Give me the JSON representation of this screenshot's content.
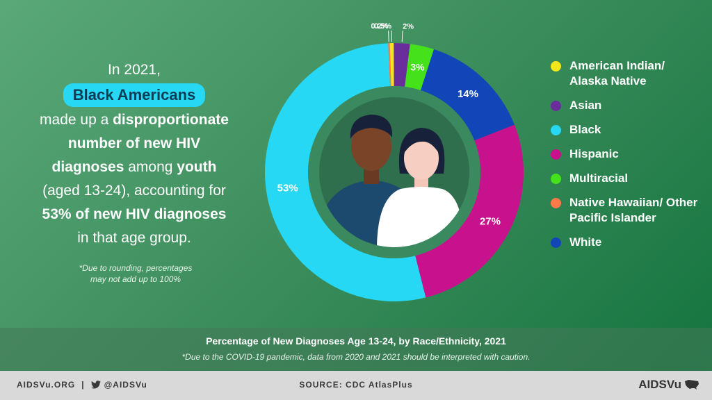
{
  "narrative": {
    "line1": "In 2021,",
    "highlight": "Black Americans",
    "line3_a": "made up a ",
    "line3_b": "disproportionate",
    "line4": "number of new HIV",
    "line5_a": "diagnoses",
    "line5_b": " among ",
    "line5_c": "youth",
    "line6": "(aged 13-24), accounting for",
    "line7": "53% of new HIV diagnoses",
    "line8": "in that age group."
  },
  "footnote": {
    "line1": "*Due to rounding, percentages",
    "line2": "may not add up to 100%"
  },
  "chart_data": {
    "type": "pie",
    "donut": true,
    "title": "Percentage of New Diagnoses Age 13-24, by Race/Ethnicity, 2021",
    "categories": [
      "American Indian/ Alaska Native",
      "Asian",
      "Multiracial",
      "White",
      "Hispanic",
      "Black",
      "Native Hawaiian/ Other Pacific Islander"
    ],
    "values": [
      0.5,
      2,
      3,
      14,
      27,
      53,
      0.2
    ],
    "labels": [
      "0.5%",
      "2%",
      "3%",
      "14%",
      "27%",
      "53%",
      "0.2%"
    ],
    "colors": [
      "#f5e51b",
      "#6a2d9c",
      "#45e21c",
      "#1145b8",
      "#c8118c",
      "#27d8f5",
      "#ff7a4a"
    ],
    "legend_position": "right"
  },
  "legend": [
    {
      "label": "American Indian/ Alaska Native",
      "color": "#f5e51b"
    },
    {
      "label": "Asian",
      "color": "#6a2d9c"
    },
    {
      "label": "Black",
      "color": "#27d8f5"
    },
    {
      "label": "Hispanic",
      "color": "#c8118c"
    },
    {
      "label": "Multiracial",
      "color": "#45e21c"
    },
    {
      "label": "Native Hawaiian/ Other Pacific Islander",
      "color": "#ff7a4a"
    },
    {
      "label": "White",
      "color": "#1145b8"
    }
  ],
  "caption": {
    "title": "Percentage of New Diagnoses Age 13-24, by Race/Ethnicity, 2021",
    "note": "*Due to the COVID-19 pandemic, data from 2020 and 2021 should be interpreted with caution."
  },
  "footer": {
    "site": "AIDSVu.ORG",
    "separator": "|",
    "handle": "@AIDSVu",
    "source": "SOURCE: CDC AtlasPlus",
    "logo": "AIDSVu",
    "twitter_icon": "twitter-icon",
    "map_icon": "us-map-icon"
  }
}
